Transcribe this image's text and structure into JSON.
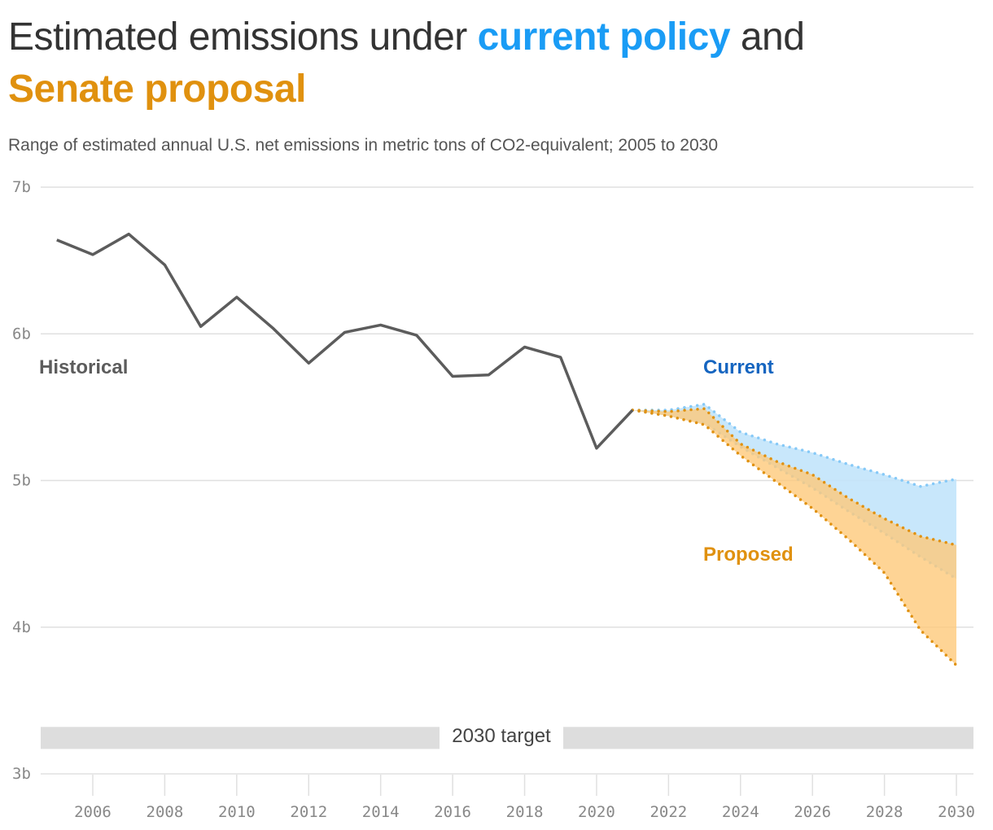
{
  "title": {
    "part1": "Estimated emissions under ",
    "part2": "current policy",
    "part3": " and",
    "part4": "Senate proposal"
  },
  "subtitle": "Range of estimated annual U.S. net emissions in metric tons of CO2-equivalent; 2005 to 2030",
  "colors": {
    "historical": "#5c5c5c",
    "current": "#1a9cf5",
    "current_fill": "#c2e4fb",
    "current_line": "#86c9f7",
    "proposed": "#e0910f",
    "proposed_fill": "#fec97a",
    "target": "#dddddd",
    "current_label": "#1565c0"
  },
  "chart_data": {
    "type": "area",
    "ylim": [
      3,
      7
    ],
    "xlim": [
      2005,
      2030
    ],
    "grid": true,
    "y_ticks": [
      {
        "value": 3,
        "label": "3b"
      },
      {
        "value": 4,
        "label": "4b"
      },
      {
        "value": 5,
        "label": "5b"
      },
      {
        "value": 6,
        "label": "6b"
      },
      {
        "value": 7,
        "label": "7b"
      }
    ],
    "x_ticks": [
      "2006",
      "2008",
      "2010",
      "2012",
      "2014",
      "2016",
      "2018",
      "2020",
      "2022",
      "2024",
      "2026",
      "2028",
      "2030"
    ],
    "historical": {
      "name": "Historical",
      "x": [
        2005,
        2006,
        2007,
        2008,
        2009,
        2010,
        2011,
        2012,
        2013,
        2014,
        2015,
        2016,
        2017,
        2018,
        2019,
        2020,
        2021
      ],
      "y": [
        6.64,
        6.54,
        6.68,
        6.47,
        6.05,
        6.25,
        6.04,
        5.8,
        6.01,
        6.06,
        5.99,
        5.71,
        5.72,
        5.91,
        5.84,
        5.22,
        5.48
      ]
    },
    "current": {
      "name": "Current",
      "x": [
        2021,
        2022,
        2023,
        2024,
        2025,
        2026,
        2027,
        2028,
        2029,
        2030
      ],
      "high": [
        5.48,
        5.48,
        5.52,
        5.33,
        5.25,
        5.19,
        5.11,
        5.04,
        4.96,
        5.01
      ],
      "low": [
        5.48,
        5.44,
        5.39,
        5.23,
        5.09,
        4.95,
        4.79,
        4.64,
        4.48,
        4.33
      ]
    },
    "proposed": {
      "name": "Proposed",
      "x": [
        2021,
        2022,
        2023,
        2024,
        2025,
        2026,
        2027,
        2028,
        2029,
        2030
      ],
      "high": [
        5.48,
        5.47,
        5.49,
        5.25,
        5.13,
        5.04,
        4.88,
        4.74,
        4.62,
        4.56
      ],
      "low": [
        5.48,
        5.44,
        5.38,
        5.17,
        4.99,
        4.81,
        4.6,
        4.37,
        3.98,
        3.74
      ]
    },
    "target": {
      "label": "2030 target",
      "low": 3.17,
      "high": 3.32
    }
  }
}
